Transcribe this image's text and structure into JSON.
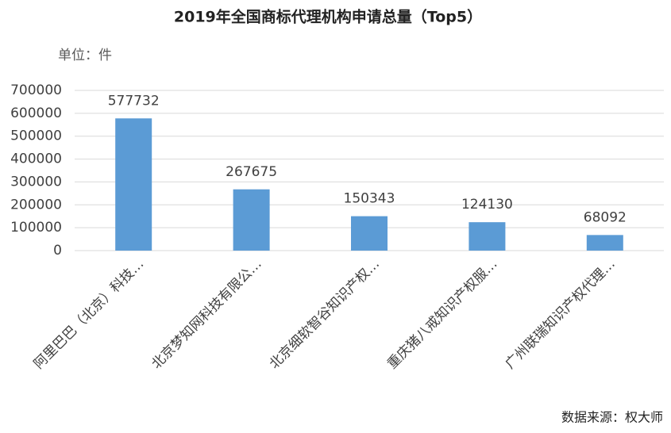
{
  "chart_data": {
    "type": "bar",
    "title": "2019年全国商标代理机构申请总量（Top5）",
    "unit_label": "单位：件",
    "source": "数据来源：权大师",
    "categories": [
      "阿里巴巴（北京）科技…",
      "北京梦知网科技有限公…",
      "北京细软智谷知识产权…",
      "重庆猪八戒知识产权服…",
      "广州联瑞知识产权代理…"
    ],
    "values": [
      577732,
      267675,
      150343,
      124130,
      68092
    ],
    "color": "#5b9bd5",
    "ylim": [
      0,
      700000
    ],
    "yticks": [
      0,
      100000,
      200000,
      300000,
      400000,
      500000,
      600000,
      700000
    ],
    "grid": true
  }
}
